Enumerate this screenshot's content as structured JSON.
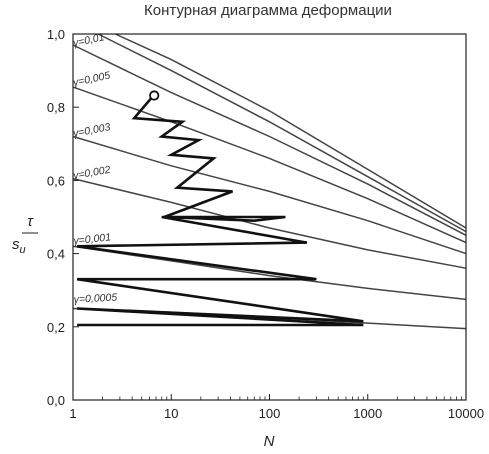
{
  "chart_data": {
    "type": "line",
    "title": "Контурная диаграмма деформации",
    "xlabel": "N",
    "ylabel_num": "τ",
    "ylabel_den": "s",
    "ylabel_den_sub": "u",
    "x_scale": "log",
    "xlim": [
      1,
      10000
    ],
    "ylim": [
      0,
      1.0
    ],
    "x_ticks": [
      1,
      10,
      100,
      1000,
      10000
    ],
    "x_tick_labels": [
      "1",
      "10",
      "100",
      "1000",
      "10000"
    ],
    "y_ticks": [
      0,
      0.2,
      0.4,
      0.6,
      0.8,
      1.0
    ],
    "y_tick_labels": [
      "0,0",
      "0,2",
      "0,4",
      "0,6",
      "0,8",
      "1,0"
    ],
    "grid": false,
    "series": [
      {
        "name": "",
        "x": [
          2.7,
          10,
          100,
          1000,
          10000
        ],
        "y": [
          1.0,
          0.93,
          0.79,
          0.63,
          0.47
        ]
      },
      {
        "name": "",
        "x": [
          1.8,
          10,
          100,
          1000,
          10000
        ],
        "y": [
          1.0,
          0.9,
          0.76,
          0.61,
          0.46
        ]
      },
      {
        "name": "γ=0,01",
        "x": [
          1,
          10,
          100,
          1000,
          10000
        ],
        "y": [
          0.97,
          0.84,
          0.72,
          0.59,
          0.45
        ]
      },
      {
        "name": "γ=0,005",
        "x": [
          1,
          10,
          100,
          1000,
          10000
        ],
        "y": [
          0.855,
          0.76,
          0.66,
          0.55,
          0.43
        ]
      },
      {
        "name": "γ=0,003",
        "x": [
          1,
          10,
          100,
          1000,
          10000
        ],
        "y": [
          0.72,
          0.64,
          0.57,
          0.49,
          0.4
        ]
      },
      {
        "name": "γ=0,002",
        "x": [
          1,
          10,
          100,
          1000,
          10000
        ],
        "y": [
          0.605,
          0.54,
          0.47,
          0.41,
          0.36
        ]
      },
      {
        "name": "γ=0,001",
        "x": [
          1,
          10,
          100,
          1000,
          10000
        ],
        "y": [
          0.42,
          0.38,
          0.34,
          0.305,
          0.275
        ]
      },
      {
        "name": "γ=0,0005",
        "x": [
          1,
          10,
          100,
          1000,
          10000
        ],
        "y": [
          0.25,
          0.24,
          0.225,
          0.21,
          0.195
        ]
      }
    ],
    "path": {
      "x": [
        6.5,
        4.2,
        13,
        8,
        19,
        10,
        27,
        11.5,
        42,
        8.5,
        70,
        145,
        8,
        240,
        1.1,
        300,
        1.1,
        900,
        1.1,
        900,
        1.1
      ],
      "y": [
        0.83,
        0.77,
        0.76,
        0.72,
        0.71,
        0.67,
        0.66,
        0.58,
        0.57,
        0.5,
        0.49,
        0.5,
        0.5,
        0.43,
        0.42,
        0.33,
        0.33,
        0.215,
        0.25,
        0.205,
        0.205
      ]
    },
    "marker": {
      "x": 6.7,
      "y": 0.832
    }
  }
}
